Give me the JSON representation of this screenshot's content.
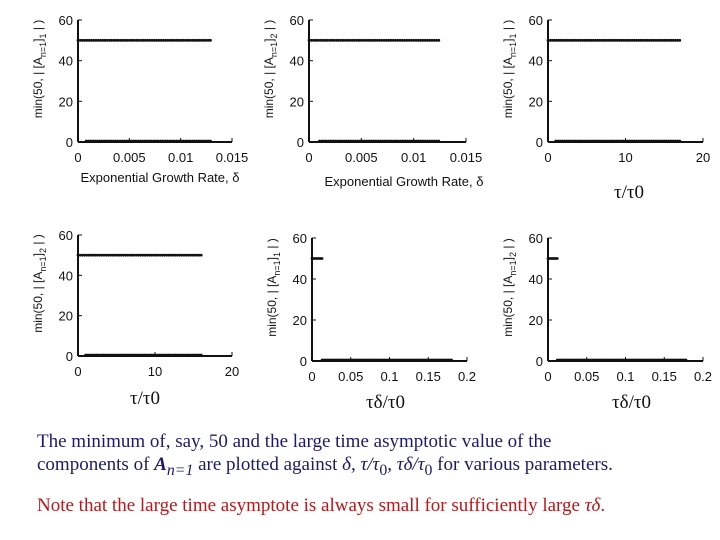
{
  "chart_data": [
    {
      "type": "scatter",
      "ylabel": "min(50, | [A_{n=1}]_1 | )",
      "xlabel": "Exponential Growth Rate, δ",
      "xlim": [
        0,
        0.015
      ],
      "ylim": [
        0,
        60
      ],
      "xticks": [
        "0",
        "0.005",
        "0.01",
        "0.015"
      ],
      "yticks": [
        "0",
        "20",
        "40",
        "60"
      ],
      "series": [
        {
          "x_range": [
            0,
            0.0129
          ],
          "y": 50,
          "points": 60
        },
        {
          "x_range": [
            0.0008,
            0.0129
          ],
          "y": 0.5,
          "points": 56
        }
      ]
    },
    {
      "type": "scatter",
      "ylabel": "min(50, | [A_{n=1}]_2 | )",
      "xlabel": "Exponential Growth Rate, δ",
      "xlim": [
        0,
        0.015
      ],
      "ylim": [
        0,
        60
      ],
      "xticks": [
        "0",
        "0.005",
        "0.01",
        "0.015"
      ],
      "yticks": [
        "0",
        "20",
        "40",
        "60"
      ],
      "series": [
        {
          "x_range": [
            0,
            0.0124
          ],
          "y": 50,
          "points": 58
        },
        {
          "x_range": [
            0.001,
            0.0124
          ],
          "y": 0.5,
          "points": 54
        }
      ]
    },
    {
      "type": "scatter",
      "ylabel": "min(50, | [A_{n=1}]_1 | )",
      "xlabel": "τ/τ0",
      "xlim": [
        0,
        20
      ],
      "ylim": [
        0,
        60
      ],
      "xticks": [
        "0",
        "10",
        "20"
      ],
      "yticks": [
        "0",
        "20",
        "40",
        "60"
      ],
      "series": [
        {
          "x_range": [
            0,
            17.0
          ],
          "y": 50,
          "points": 62
        },
        {
          "x_range": [
            1.0,
            17.0
          ],
          "y": 0.5,
          "points": 58
        }
      ]
    },
    {
      "type": "scatter",
      "ylabel": "min(50, | [A_{n=1}]_2 | )",
      "xlabel": "τ/τ0",
      "xlim": [
        0,
        20
      ],
      "ylim": [
        0,
        60
      ],
      "xticks": [
        "0",
        "10",
        "20"
      ],
      "yticks": [
        "0",
        "20",
        "40",
        "60"
      ],
      "series": [
        {
          "x_range": [
            0,
            16.0
          ],
          "y": 50,
          "points": 58
        },
        {
          "x_range": [
            1.0,
            16.0
          ],
          "y": 0.5,
          "points": 54
        }
      ]
    },
    {
      "type": "scatter",
      "ylabel": "min(50, | [A_{n=1}]_1 | )",
      "xlabel": "τδ/τ0",
      "xlim": [
        0,
        0.2
      ],
      "ylim": [
        0,
        60
      ],
      "xticks": [
        "0",
        "0.05",
        "0.1",
        "0.15",
        "0.2"
      ],
      "yticks": [
        "0",
        "20",
        "40",
        "60"
      ],
      "series": [
        {
          "x_range": [
            0,
            0.013
          ],
          "y": 50,
          "points": 8
        },
        {
          "x_range": [
            0.013,
            0.18
          ],
          "y": 0.5,
          "points": 90
        }
      ]
    },
    {
      "type": "scatter",
      "ylabel": "min(50, | [A_{n=1}]_2 | )",
      "xlabel": "τδ/τ0",
      "xlim": [
        0,
        0.2
      ],
      "ylim": [
        0,
        60
      ],
      "xticks": [
        "0",
        "0.05",
        "0.1",
        "0.15",
        "0.2"
      ],
      "yticks": [
        "0",
        "20",
        "40",
        "60"
      ],
      "series": [
        {
          "x_range": [
            0,
            0.012
          ],
          "y": 50,
          "points": 8
        },
        {
          "x_range": [
            0.012,
            0.178
          ],
          "y": 0.5,
          "points": 90
        }
      ]
    }
  ],
  "labels": {
    "tau_tau0": "τ/τ0",
    "taudelta_tau0": "τδ/τ0"
  },
  "caption": {
    "line1": "The minimum of, say, 50 and the large time asymptotic value of the",
    "line2_a": "components of ",
    "line2_b": "A",
    "line2_c": "n=1",
    "line2_d": " are plotted against ",
    "line2_e": "δ, τ/τ",
    "line2_f": "0",
    "line2_g": ", τδ/τ",
    "line2_h": "0",
    "line2_i": " for various parameters.",
    "note_a": "Note that the large time asymptote is always small for sufficiently large ",
    "note_b": "τδ",
    "note_c": "."
  },
  "colors": {
    "ink": "#111111",
    "caption": "#1a1a70",
    "note": "#b8171b"
  }
}
